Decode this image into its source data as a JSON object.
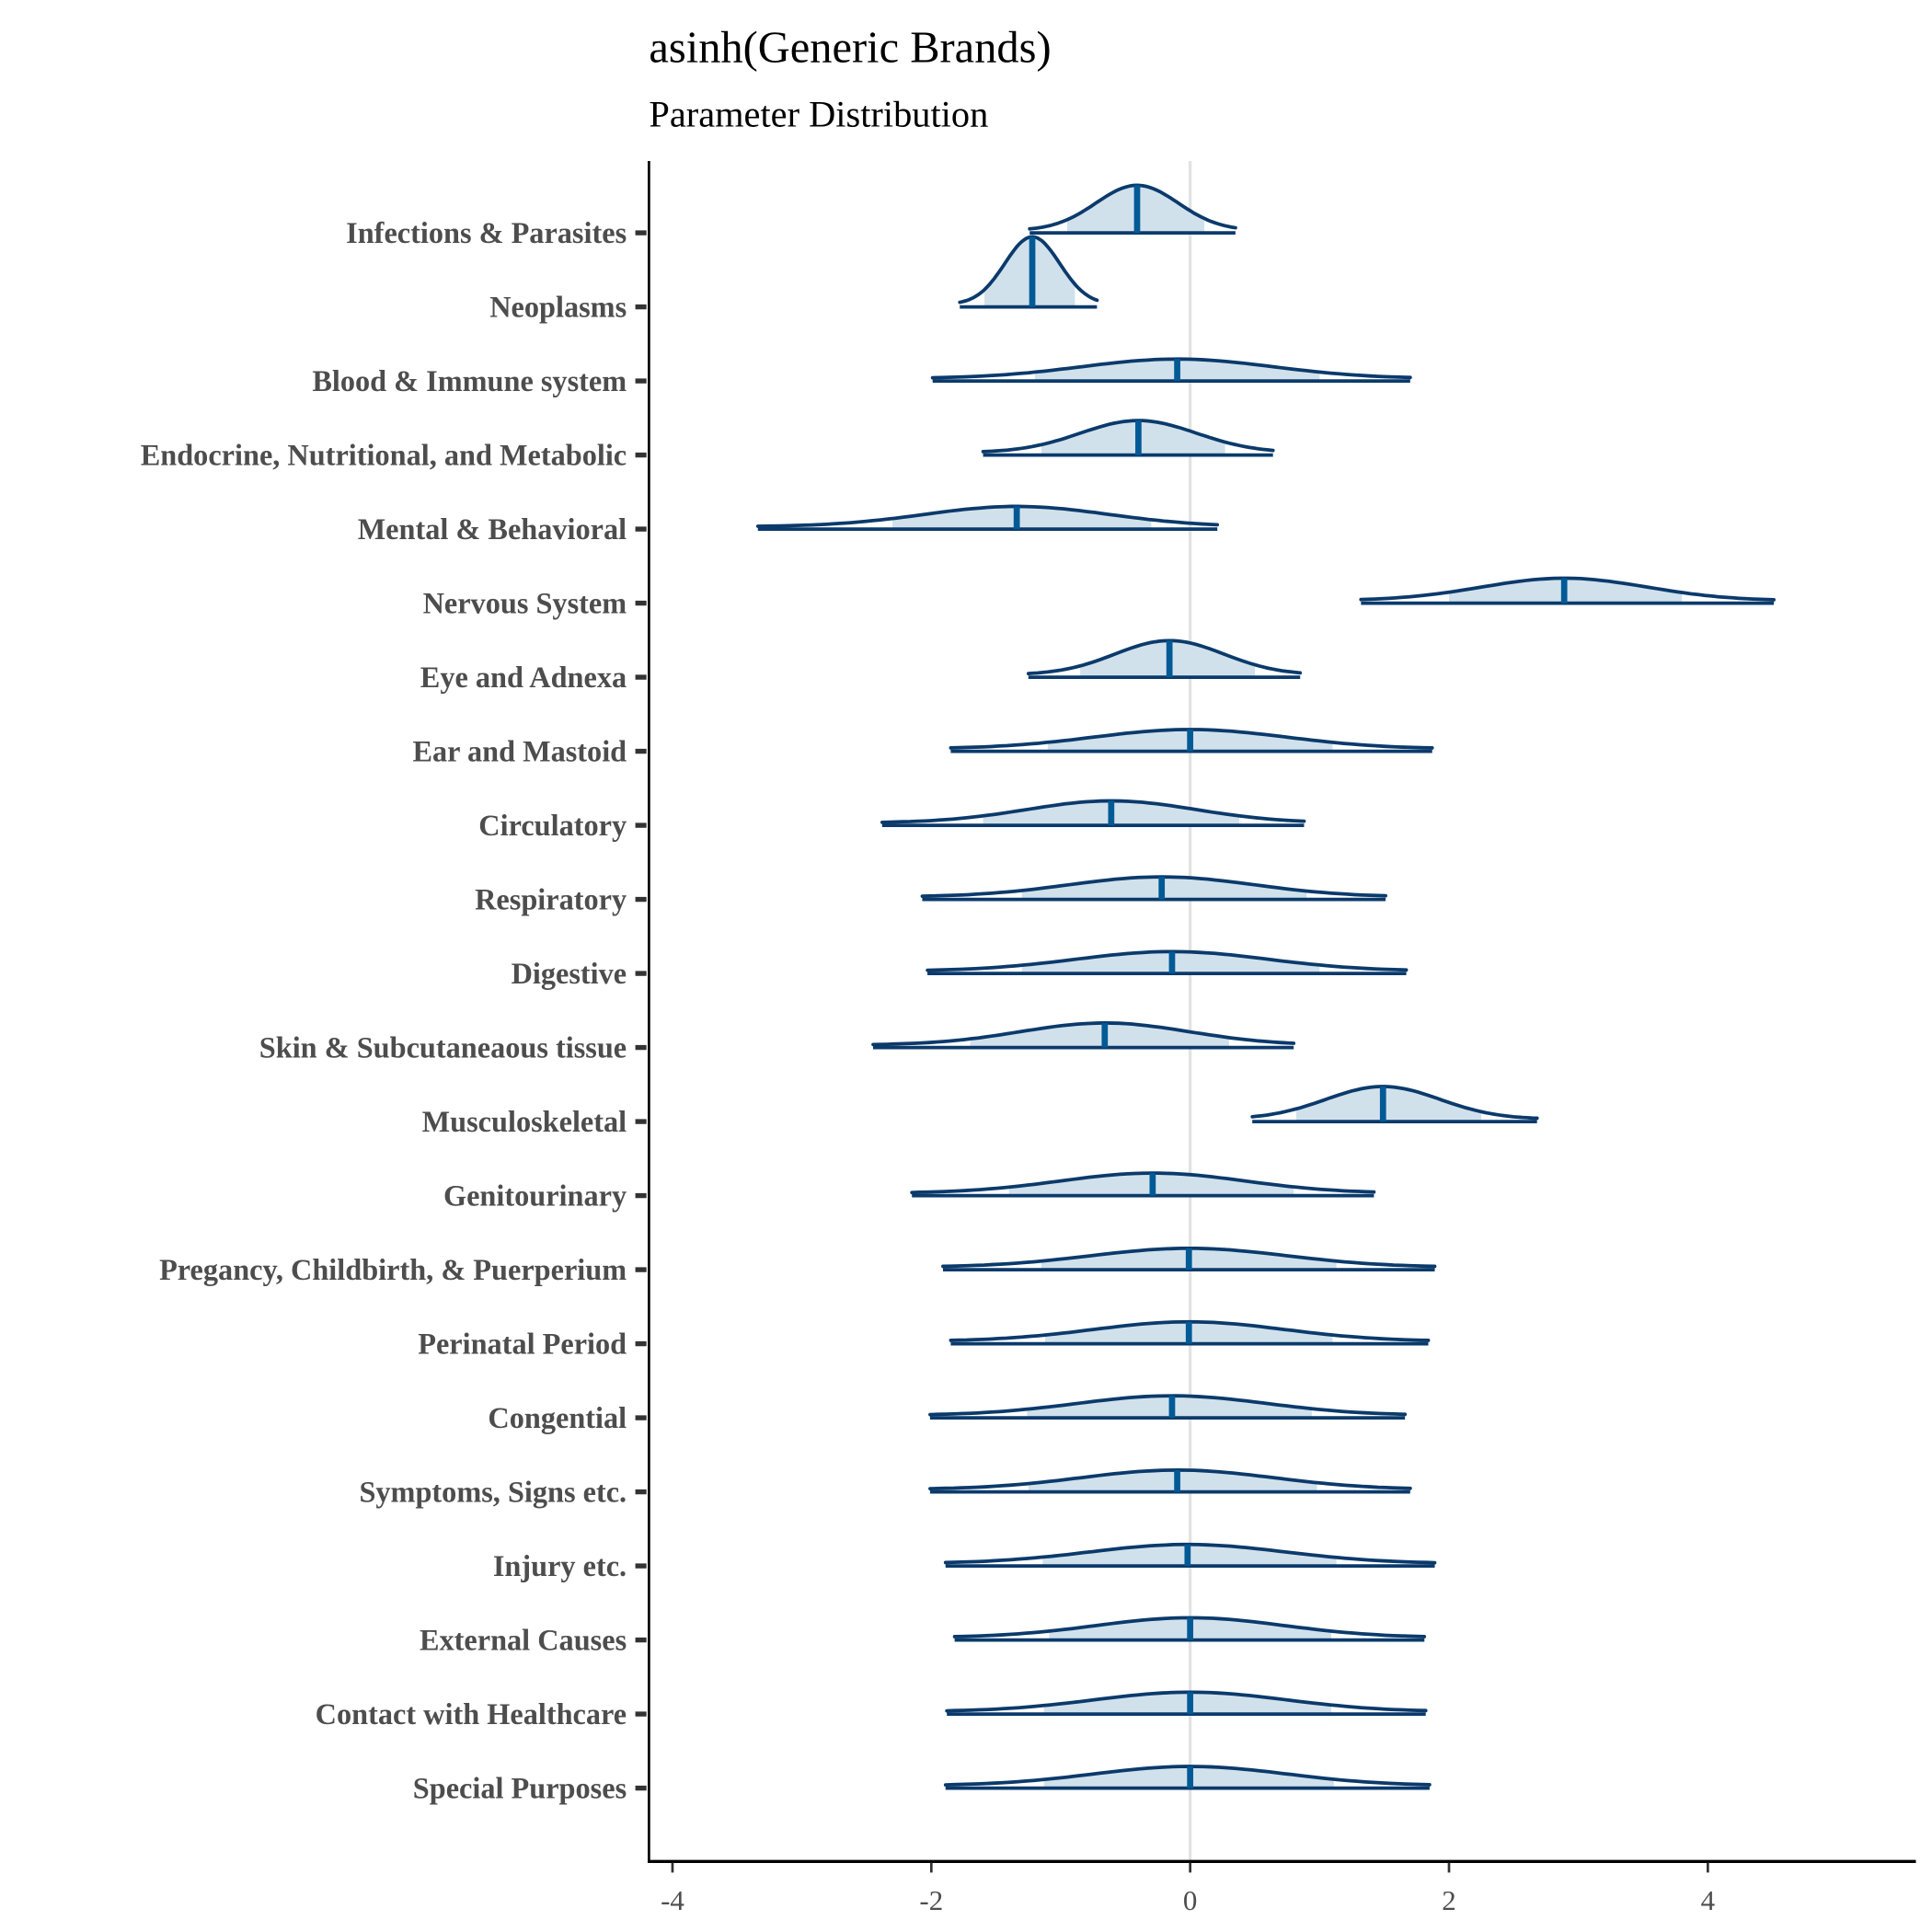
{
  "chart_data": {
    "type": "density-interval",
    "title": "asinh(Generic Brands)",
    "subtitle": "Parameter Distribution",
    "xlabel": "",
    "ylabel": "",
    "xlim": [
      -4.2,
      5.6
    ],
    "xticks": [
      "-4",
      "-2",
      "0",
      "2",
      "4"
    ],
    "xtick_values": [
      -4,
      -2,
      0,
      2,
      4
    ],
    "reference_line": 0,
    "grid": false,
    "colors": {
      "outline": "#0b3a6b",
      "fill": "#d1e1ec",
      "median": "#005a96",
      "reference": "#e3e3e3"
    },
    "categories": [
      "Infections & Parasites",
      "Neoplasms",
      "Blood & Immune system",
      "Endocrine, Nutritional, and Metabolic",
      "Mental & Behavioral",
      "Nervous System",
      "Eye and Adnexa",
      "Ear and Mastoid",
      "Circulatory",
      "Respiratory",
      "Digestive",
      "Skin & Subcutaneaous tissue",
      "Musculoskeletal",
      "Genitourinary",
      "Pregancy, Childbirth, & Puerperium",
      "Perinatal Period",
      "Congential",
      "Symptoms, Signs etc.",
      "Injury etc.",
      "External Causes",
      "Contact with Healthcare",
      "Special Purposes"
    ],
    "series": [
      {
        "min": -1.24,
        "max": 0.35,
        "median": -0.41,
        "interval": [
          -0.95,
          0.11
        ]
      },
      {
        "min": -1.78,
        "max": -0.72,
        "median": -1.22,
        "interval": [
          -1.59,
          -0.89
        ]
      },
      {
        "min": -1.99,
        "max": 1.7,
        "median": -0.1,
        "interval": [
          -1.2,
          1.0
        ]
      },
      {
        "min": -1.6,
        "max": 0.64,
        "median": -0.4,
        "interval": [
          -1.15,
          0.27
        ]
      },
      {
        "min": -3.34,
        "max": 0.21,
        "median": -1.34,
        "interval": [
          -2.3,
          -0.3
        ]
      },
      {
        "min": 1.32,
        "max": 4.51,
        "median": 2.89,
        "interval": [
          2.0,
          3.8
        ]
      },
      {
        "min": -1.25,
        "max": 0.85,
        "median": -0.16,
        "interval": [
          -0.85,
          0.5
        ]
      },
      {
        "min": -1.85,
        "max": 1.87,
        "median": 0.0,
        "interval": [
          -1.1,
          1.1
        ]
      },
      {
        "min": -2.38,
        "max": 0.88,
        "median": -0.61,
        "interval": [
          -1.6,
          0.38
        ]
      },
      {
        "min": -2.07,
        "max": 1.51,
        "median": -0.22,
        "interval": [
          -1.3,
          0.9
        ]
      },
      {
        "min": -2.03,
        "max": 1.67,
        "median": -0.14,
        "interval": [
          -1.3,
          1.0
        ]
      },
      {
        "min": -2.45,
        "max": 0.8,
        "median": -0.66,
        "interval": [
          -1.7,
          0.3
        ]
      },
      {
        "min": 0.48,
        "max": 2.68,
        "median": 1.49,
        "interval": [
          0.82,
          2.25
        ]
      },
      {
        "min": -2.15,
        "max": 1.42,
        "median": -0.29,
        "interval": [
          -1.4,
          0.8
        ]
      },
      {
        "min": -1.91,
        "max": 1.89,
        "median": -0.01,
        "interval": [
          -1.15,
          1.13
        ]
      },
      {
        "min": -1.85,
        "max": 1.84,
        "median": -0.01,
        "interval": [
          -1.12,
          1.1
        ]
      },
      {
        "min": -2.01,
        "max": 1.66,
        "median": -0.14,
        "interval": [
          -1.26,
          0.94
        ]
      },
      {
        "min": -2.01,
        "max": 1.7,
        "median": -0.1,
        "interval": [
          -1.25,
          0.98
        ]
      },
      {
        "min": -1.89,
        "max": 1.89,
        "median": -0.02,
        "interval": [
          -1.14,
          1.13
        ]
      },
      {
        "min": -1.82,
        "max": 1.81,
        "median": 0.0,
        "interval": [
          -1.09,
          1.09
        ]
      },
      {
        "min": -1.88,
        "max": 1.82,
        "median": 0.0,
        "interval": [
          -1.13,
          1.09
        ]
      },
      {
        "min": -1.89,
        "max": 1.85,
        "median": 0.0,
        "interval": [
          -1.13,
          1.11
        ]
      }
    ]
  }
}
